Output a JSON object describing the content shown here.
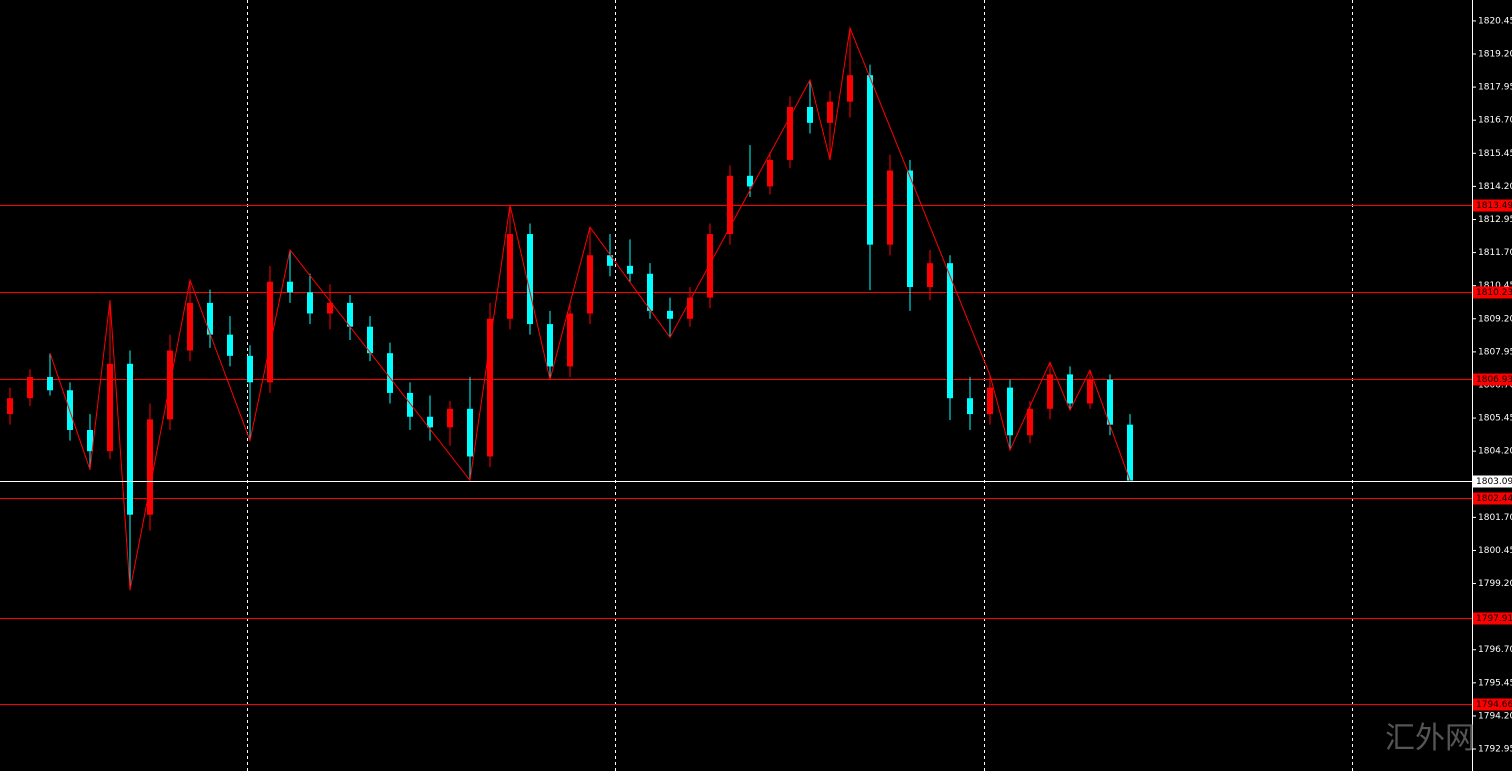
{
  "chart_data": {
    "type": "candlestick",
    "ylim": [
      1792.12,
      1821.24
    ],
    "yticks": [
      1820.45,
      {
        "value": 1819.2,
        "label": "1819.20"
      },
      1817.95,
      {
        "value": 1816.7,
        "label": "1816.70"
      },
      1815.45,
      {
        "value": 1814.2,
        "label": "1814.20"
      },
      1812.95,
      {
        "value": 1811.7,
        "label": "1811.70"
      },
      1810.45,
      {
        "value": 1809.2,
        "label": "1809.20"
      },
      1807.95,
      {
        "value": 1806.7,
        "label": "1806.70"
      },
      1805.45,
      {
        "value": 1804.2,
        "label": "1804.20"
      },
      1802.95,
      {
        "value": 1801.7,
        "label": "1801.70"
      },
      1800.45,
      {
        "value": 1799.2,
        "label": "1799.20"
      },
      1797.95,
      {
        "value": 1796.7,
        "label": "1796.70"
      },
      1795.45,
      {
        "value": 1794.2,
        "label": "1794.20"
      },
      1792.95
    ],
    "up_color": "#ff0000",
    "down_color": "#00ffff",
    "open": [
      1805.6,
      1806.2,
      1807.0,
      1806.5,
      1805.0,
      1804.2,
      1807.5,
      1801.8,
      1805.4,
      1808.0,
      1809.8,
      1808.6,
      1807.8,
      1806.8,
      1810.6,
      1810.2,
      1809.4,
      1809.8,
      1808.9,
      1807.9,
      1806.4,
      1805.5,
      1805.1,
      1805.8,
      1804.0,
      1809.2,
      1812.4,
      1809.0,
      1807.4,
      1809.4,
      1811.6,
      1811.2,
      1810.9,
      1809.5,
      1809.2,
      1810.0,
      1812.4,
      1814.6,
      1814.2,
      1815.2,
      1817.2,
      1816.6,
      1817.4,
      1818.4,
      1812.0,
      1814.8,
      1810.4,
      1811.3,
      1806.2,
      1805.6,
      1806.6,
      1804.8,
      1805.8,
      1807.1,
      1806.0,
      1806.9,
      1805.2
    ],
    "high": [
      1806.6,
      1807.3,
      1807.9,
      1806.8,
      1805.6,
      1809.9,
      1808.0,
      1806.0,
      1808.6,
      1810.66,
      1810.3,
      1809.3,
      1808.2,
      1811.2,
      1811.8,
      1810.9,
      1810.5,
      1810.1,
      1809.3,
      1808.3,
      1806.8,
      1806.3,
      1806.1,
      1807.0,
      1809.8,
      1813.5,
      1812.8,
      1809.5,
      1809.8,
      1812.66,
      1812.4,
      1812.2,
      1811.3,
      1810.0,
      1810.4,
      1812.8,
      1815.0,
      1815.76,
      1815.5,
      1817.6,
      1818.22,
      1817.8,
      1820.18,
      1818.8,
      1815.4,
      1815.2,
      1811.8,
      1811.6,
      1807.0,
      1807.07,
      1806.9,
      1806.1,
      1807.56,
      1807.4,
      1807.26,
      1807.1,
      1805.6
    ],
    "low": [
      1805.2,
      1805.9,
      1806.3,
      1804.6,
      1803.5,
      1803.9,
      1798.95,
      1801.2,
      1805.0,
      1807.6,
      1808.1,
      1807.4,
      1804.6,
      1806.4,
      1809.8,
      1809.0,
      1808.8,
      1808.4,
      1807.6,
      1806.0,
      1805.0,
      1804.6,
      1804.4,
      1803.1,
      1803.6,
      1808.8,
      1808.6,
      1806.9,
      1807.0,
      1809.0,
      1810.8,
      1810.6,
      1809.2,
      1808.5,
      1808.9,
      1809.6,
      1812.0,
      1813.8,
      1813.9,
      1814.9,
      1816.2,
      1815.2,
      1816.8,
      1810.28,
      1811.6,
      1809.5,
      1809.9,
      1805.37,
      1805.0,
      1805.2,
      1804.24,
      1804.5,
      1805.4,
      1805.75,
      1805.8,
      1804.8,
      1803.09
    ],
    "close": [
      1806.2,
      1807.0,
      1806.5,
      1805.0,
      1804.2,
      1807.5,
      1801.8,
      1805.4,
      1808.0,
      1809.8,
      1808.6,
      1807.8,
      1806.8,
      1810.6,
      1810.2,
      1809.4,
      1809.8,
      1808.9,
      1807.9,
      1806.4,
      1805.5,
      1805.1,
      1805.8,
      1804.0,
      1809.2,
      1812.4,
      1809.0,
      1807.4,
      1809.4,
      1811.6,
      1811.2,
      1810.9,
      1809.5,
      1809.2,
      1810.0,
      1812.4,
      1814.6,
      1814.2,
      1815.2,
      1817.2,
      1816.6,
      1817.4,
      1818.4,
      1812.0,
      1814.8,
      1810.4,
      1811.3,
      1806.2,
      1805.6,
      1806.6,
      1804.8,
      1805.8,
      1807.1,
      1806.0,
      1806.9,
      1805.2,
      1803.09
    ],
    "zigzag": {
      "color": "#ff0000",
      "x": [
        2,
        4,
        5,
        6,
        9,
        12,
        14,
        23,
        25,
        27,
        29,
        33,
        40,
        41,
        42,
        49,
        50,
        52,
        53,
        54,
        56
      ],
      "values": [
        1807.9,
        1803.5,
        1809.9,
        1798.95,
        1810.66,
        1804.6,
        1811.8,
        1803.1,
        1813.5,
        1806.9,
        1812.66,
        1808.5,
        1818.22,
        1815.2,
        1820.18,
        1807.07,
        1804.24,
        1807.56,
        1805.75,
        1807.26,
        1803.09
      ]
    },
    "levels": {
      "color": "#ff0000",
      "values": [
        1813.49,
        1810.23,
        1806.93,
        1802.44,
        1797.91,
        1794.66
      ]
    },
    "current_price": {
      "color": "#ffffff",
      "value": 1803.09
    },
    "watermark": "汇外网"
  }
}
